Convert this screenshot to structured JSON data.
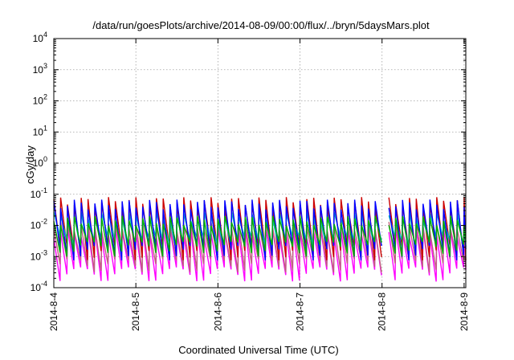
{
  "chart_data": {
    "type": "line",
    "title": "/data/run/goesPlots/archive/2014-08-09/00:00/flux/../bryn/5daysMars.plot",
    "xlabel": "Coordinated Universal Time (UTC)",
    "ylabel": "cGy/day",
    "x_tick_labels": [
      "2014-8-4",
      "2014-8-5",
      "2014-8-6",
      "2014-8-7",
      "2014-8-8",
      "2014-8-9"
    ],
    "xlim": [
      "2014-08-04",
      "2014-08-09T00:30"
    ],
    "y_scale": "log",
    "ylim": [
      0.0001,
      10000
    ],
    "y_tick_labels": [
      {
        "base": "10",
        "exp": "-4"
      },
      {
        "base": "10",
        "exp": "-3"
      },
      {
        "base": "10",
        "exp": "-2"
      },
      {
        "base": "10",
        "exp": "-1"
      },
      {
        "base": "10",
        "exp": "0"
      },
      {
        "base": "10",
        "exp": "1"
      },
      {
        "base": "10",
        "exp": "2"
      },
      {
        "base": "10",
        "exp": "3"
      },
      {
        "base": "10",
        "exp": "4"
      }
    ],
    "grid": true,
    "legend": "none",
    "sawtooth_period_hours": 2,
    "series": [
      {
        "color": "#ff00ff",
        "peak": 0.006,
        "trough": 0.0003
      },
      {
        "color": "#c06080",
        "peak": 0.01,
        "trough": 0.0006
      },
      {
        "color": "#cc0000",
        "peak": 0.06,
        "trough": 0.0015
      },
      {
        "color": "#00c0c0",
        "peak": 0.02,
        "trough": 0.003
      },
      {
        "color": "#0000ff",
        "peak": 0.05,
        "trough": 0.0015
      },
      {
        "color": "#00b000",
        "peak": 0.015,
        "trough": 0.002
      }
    ]
  }
}
